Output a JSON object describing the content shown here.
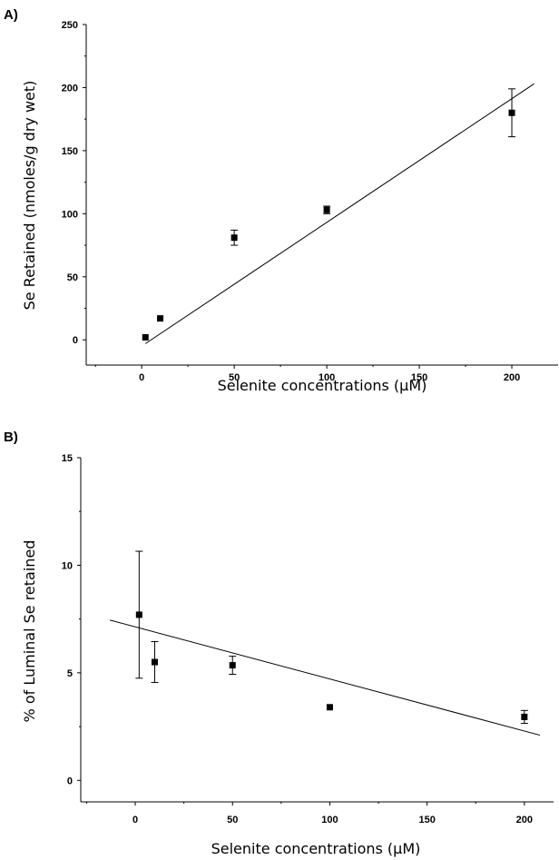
{
  "chart_data": [
    {
      "type": "scatter",
      "panel_label": "A)",
      "xlabel": "Selenite concentrations (μM)",
      "ylabel": "Se Retained (nmoles/g dry wet)",
      "xlim": [
        -30,
        225
      ],
      "ylim": [
        -20,
        250
      ],
      "xticks": [
        0,
        50,
        100,
        150,
        200
      ],
      "yticks": [
        0,
        50,
        100,
        150,
        200,
        250
      ],
      "xtick_labels": [
        "0",
        "50",
        "100",
        "150",
        "200"
      ],
      "ytick_labels": [
        "0",
        "50",
        "100",
        "150",
        "200",
        "250"
      ],
      "points": [
        {
          "x": 2,
          "y": 2,
          "err": 0
        },
        {
          "x": 10,
          "y": 17,
          "err": 0
        },
        {
          "x": 50,
          "y": 81,
          "err": 6
        },
        {
          "x": 100,
          "y": 103,
          "err": 3
        },
        {
          "x": 200,
          "y": 180,
          "err": 19
        }
      ],
      "fit_line": {
        "x": [
          2,
          212
        ],
        "y": [
          -3,
          203
        ]
      }
    },
    {
      "type": "scatter",
      "panel_label": "B)",
      "xlabel": "Selenite concentrations (μM)",
      "ylabel": "% of Luminal Se retained",
      "xlim": [
        -28,
        215
      ],
      "ylim": [
        -1,
        15
      ],
      "xticks": [
        0,
        50,
        100,
        150,
        200
      ],
      "yticks": [
        0,
        5,
        10,
        15
      ],
      "xtick_labels": [
        "0",
        "50",
        "100",
        "150",
        "200"
      ],
      "ytick_labels": [
        "0",
        "5",
        "10",
        "15"
      ],
      "points": [
        {
          "x": 2,
          "y": 7.7,
          "err": 2.95
        },
        {
          "x": 10,
          "y": 5.5,
          "err": 0.95
        },
        {
          "x": 50,
          "y": 5.35,
          "err": 0.42
        },
        {
          "x": 100,
          "y": 3.4,
          "err": 0
        },
        {
          "x": 200,
          "y": 2.95,
          "err": 0.3
        }
      ],
      "fit_line": {
        "x": [
          -13,
          208
        ],
        "y": [
          7.45,
          2.1
        ]
      }
    }
  ]
}
